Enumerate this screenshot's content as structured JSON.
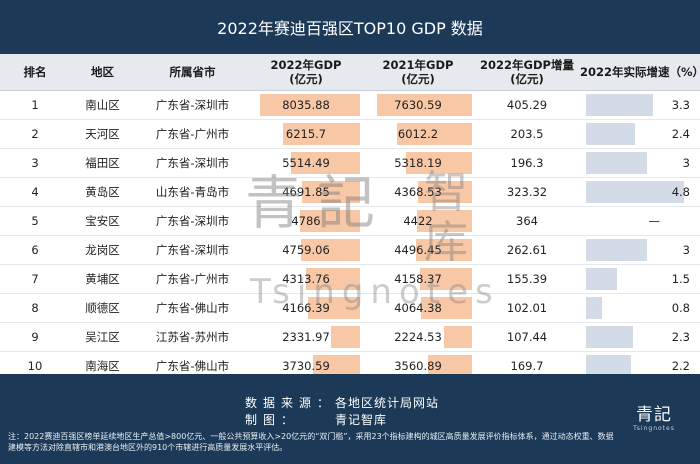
{
  "title": "2022年赛迪百强区TOP10 GDP 数据",
  "headers": {
    "rank": "排名",
    "district": "地区",
    "province": "所属省市",
    "gdp2022_line1": "2022年GDP",
    "gdp2022_line2": "(亿元)",
    "gdp2021_line1": "2021年GDP",
    "gdp2021_line2": "(亿元)",
    "increase_line1": "2022年GDP增量",
    "increase_line2": "(亿元)",
    "growth": "2022年实际增速（%）"
  },
  "rows": [
    {
      "rank": "1",
      "district": "南山区",
      "province": "广东省-深圳市",
      "gdp2022": "8035.88",
      "gdp2021": "7630.59",
      "increase": "405.29",
      "growth": "3.3"
    },
    {
      "rank": "2",
      "district": "天河区",
      "province": "广东省-广州市",
      "gdp2022": "6215.7",
      "gdp2021": "6012.2",
      "increase": "203.5",
      "growth": "2.4"
    },
    {
      "rank": "3",
      "district": "福田区",
      "province": "广东省-深圳市",
      "gdp2022": "5514.49",
      "gdp2021": "5318.19",
      "increase": "196.3",
      "growth": "3"
    },
    {
      "rank": "4",
      "district": "黄岛区",
      "province": "山东省-青岛市",
      "gdp2022": "4691.85",
      "gdp2021": "4368.53",
      "increase": "323.32",
      "growth": "4.8"
    },
    {
      "rank": "5",
      "district": "宝安区",
      "province": "广东省-深圳市",
      "gdp2022": "4786",
      "gdp2021": "4422",
      "increase": "364",
      "growth": "—"
    },
    {
      "rank": "6",
      "district": "龙岗区",
      "province": "广东省-深圳市",
      "gdp2022": "4759.06",
      "gdp2021": "4496.45",
      "increase": "262.61",
      "growth": "3"
    },
    {
      "rank": "7",
      "district": "黄埔区",
      "province": "广东省-广州市",
      "gdp2022": "4313.76",
      "gdp2021": "4158.37",
      "increase": "155.39",
      "growth": "1.5"
    },
    {
      "rank": "8",
      "district": "顺德区",
      "province": "广东省-佛山市",
      "gdp2022": "4166.39",
      "gdp2021": "4064.38",
      "increase": "102.01",
      "growth": "0.8"
    },
    {
      "rank": "9",
      "district": "吴江区",
      "province": "江苏省-苏州市",
      "gdp2022": "2331.97",
      "gdp2021": "2224.53",
      "increase": "107.44",
      "growth": "2.3"
    },
    {
      "rank": "10",
      "district": "南海区",
      "province": "广东省-佛山市",
      "gdp2022": "3730.59",
      "gdp2021": "3560.89",
      "increase": "169.7",
      "growth": "2.2"
    }
  ],
  "source": {
    "data_label": "数据来源：",
    "data_value": "各地区统计局网站",
    "maker_label": "制图：",
    "maker_value": "青记智库"
  },
  "note": "注：2022赛迪百强区榜单延续地区生产总值>800亿元、一般公共预算收入>20亿元的“双门槛”，采用23个指标建构的城区高质量发展评价指标体系，通过动态权重、数据建模等方法对除直辖市和港澳台地区外的910个市辖进行高质量发展水平评估。",
  "logo": {
    "cn": "青記",
    "en": "Tsingnotes"
  },
  "watermark": {
    "cn_main": "青記",
    "cn_side": "智库",
    "en": "Tsingnotes"
  },
  "colors": {
    "header_bg": "#1c3a58",
    "gdp_bar": "#f7c7a6",
    "growth_bar": "#d3dbe6"
  }
}
